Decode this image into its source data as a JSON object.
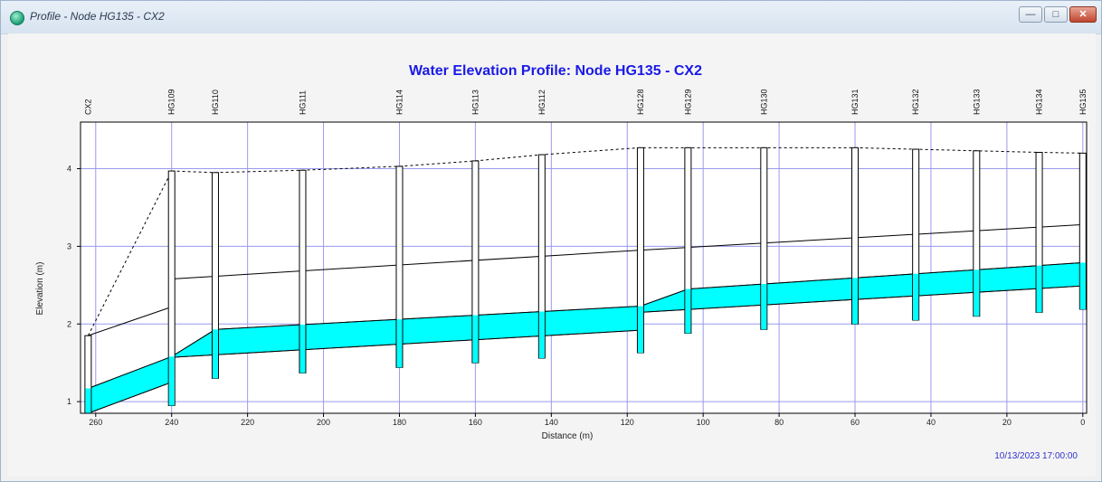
{
  "window": {
    "title": "Profile - Node HG135 - CX2",
    "minimize_glyph": "—",
    "maximize_glyph": "□",
    "close_glyph": "✕"
  },
  "chart_data": {
    "type": "area",
    "title": "Water Elevation Profile:  Node HG135 - CX2",
    "xlabel": "Distance (m)",
    "ylabel": "Elevation (m)",
    "xlim": [
      264,
      -1
    ],
    "ylim": [
      0.85,
      4.6
    ],
    "x_reversed": true,
    "grid": true,
    "xticks": [
      260,
      240,
      220,
      200,
      180,
      160,
      140,
      120,
      100,
      80,
      60,
      40,
      20,
      0
    ],
    "yticks": [
      1,
      2,
      3,
      4
    ],
    "timestamp": "10/13/2023 17:00:00",
    "nodes": [
      {
        "name": "CX2",
        "x": 262,
        "invert": 0.85,
        "top": 1.85,
        "invert_down": 0.85,
        "invert_up": 0.85
      },
      {
        "name": "HG109",
        "x": 240,
        "invert": 0.95,
        "top": 3.97,
        "invert_down": 2.22,
        "invert_up": 2.58
      },
      {
        "name": "HG110",
        "x": 228.5,
        "invert": 1.3,
        "top": 3.95
      },
      {
        "name": "HG111",
        "x": 205.5,
        "invert": 1.37,
        "top": 3.98
      },
      {
        "name": "HG114",
        "x": 180,
        "invert": 1.44,
        "top": 4.03
      },
      {
        "name": "HG113",
        "x": 160,
        "invert": 1.5,
        "top": 4.1
      },
      {
        "name": "HG112",
        "x": 142.5,
        "invert": 1.56,
        "top": 4.18
      },
      {
        "name": "HG128",
        "x": 116.5,
        "invert": 1.63,
        "top": 4.27,
        "invert_down": 1.92,
        "invert_up": 2.15
      },
      {
        "name": "HG129",
        "x": 104,
        "invert": 1.88,
        "top": 4.27
      },
      {
        "name": "HG130",
        "x": 84,
        "invert": 1.93,
        "top": 4.27
      },
      {
        "name": "HG131",
        "x": 60,
        "invert": 2.0,
        "top": 4.27
      },
      {
        "name": "HG132",
        "x": 44,
        "invert": 2.05,
        "top": 4.25
      },
      {
        "name": "HG133",
        "x": 28,
        "invert": 2.1,
        "top": 4.23
      },
      {
        "name": "HG134",
        "x": 11.5,
        "invert": 2.15,
        "top": 4.21
      },
      {
        "name": "HG135",
        "x": 0,
        "invert": 2.19,
        "top": 4.2
      }
    ],
    "series": [
      {
        "name": "",
        "role": "ground",
        "color": "#000000",
        "dash": true,
        "points": [
          [
            262,
            1.85
          ],
          [
            240,
            3.97
          ],
          [
            228.5,
            3.95
          ],
          [
            205.5,
            3.98
          ],
          [
            180,
            4.03
          ],
          [
            160,
            4.1
          ],
          [
            142.5,
            4.18
          ],
          [
            116.5,
            4.27
          ],
          [
            104,
            4.27
          ],
          [
            84,
            4.27
          ],
          [
            60,
            4.27
          ],
          [
            44,
            4.25
          ],
          [
            28,
            4.23
          ],
          [
            11.5,
            4.21
          ],
          [
            0,
            4.2
          ]
        ]
      },
      {
        "name": "",
        "role": "crown",
        "color": "#000000",
        "points": [
          [
            262,
            1.85
          ],
          [
            240,
            2.22
          ],
          [
            240,
            2.58
          ],
          [
            116.5,
            2.95
          ],
          [
            0,
            3.28
          ]
        ]
      },
      {
        "name": "",
        "role": "water",
        "color": "#00ffff",
        "points": [
          [
            262,
            1.17
          ],
          [
            240,
            1.58
          ],
          [
            228.5,
            1.93
          ],
          [
            116.5,
            2.23
          ],
          [
            104,
            2.45
          ],
          [
            0,
            2.79
          ]
        ]
      },
      {
        "name": "",
        "role": "invert",
        "color": "#000000",
        "points": [
          [
            262,
            0.85
          ],
          [
            240,
            1.25
          ],
          [
            240,
            1.57
          ],
          [
            116.5,
            1.92
          ],
          [
            116.5,
            2.15
          ],
          [
            0,
            2.49
          ]
        ]
      }
    ]
  }
}
